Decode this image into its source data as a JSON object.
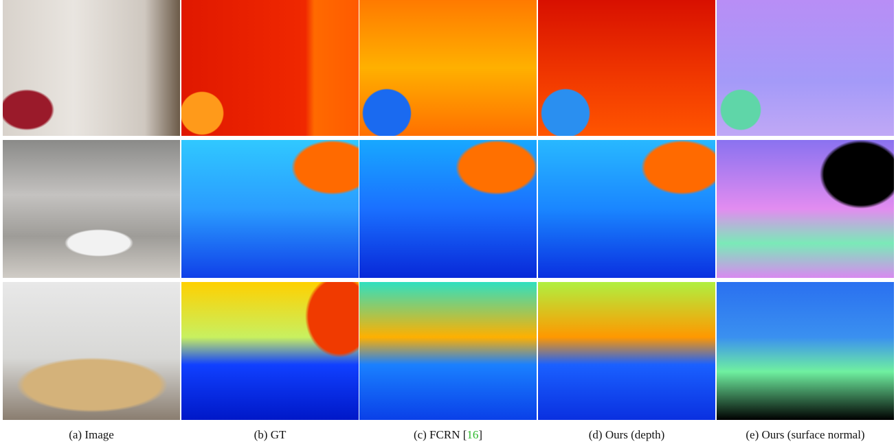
{
  "figure": {
    "captions": [
      {
        "text": "(a) Image"
      },
      {
        "text": "(b) GT"
      },
      {
        "prefix": "(c) FCRN [",
        "citation": "16",
        "suffix": "]"
      },
      {
        "text": "(d) Ours (depth)"
      },
      {
        "text": "(e) Ours (surface normal)"
      }
    ]
  }
}
